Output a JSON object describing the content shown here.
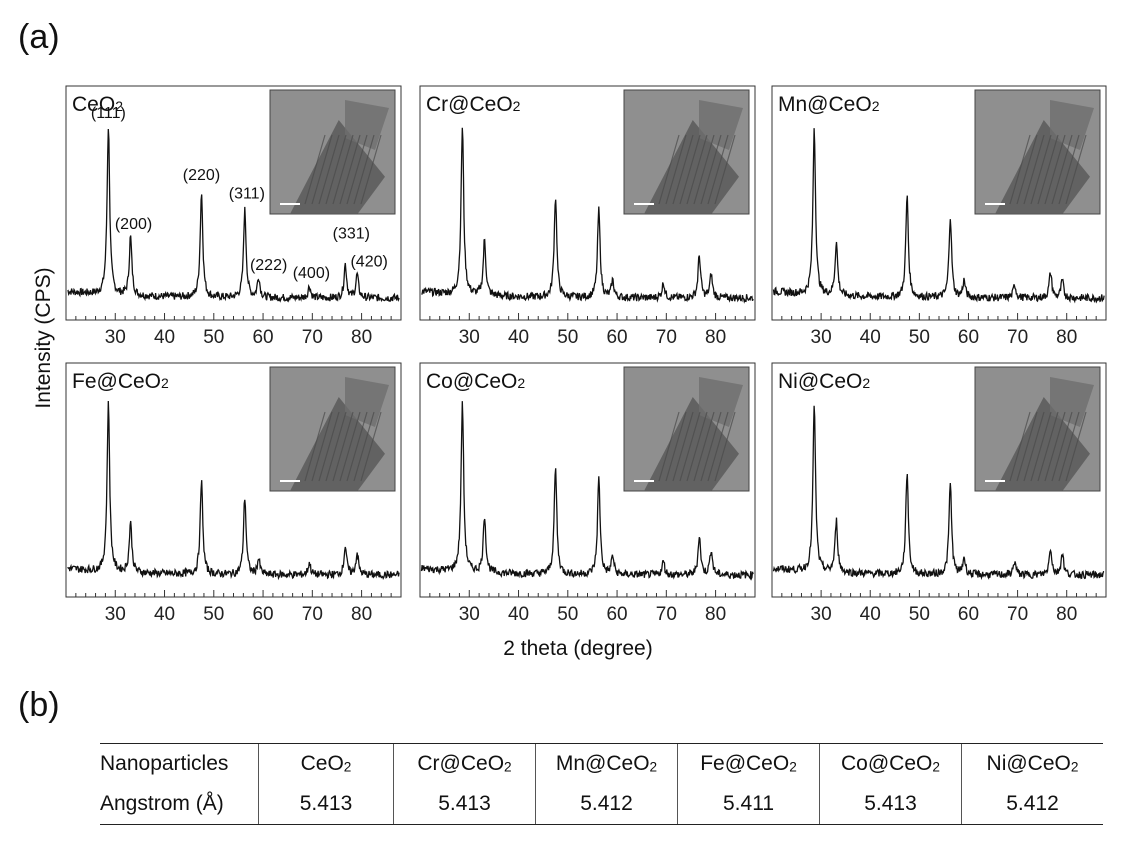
{
  "labels": {
    "a": "(a)",
    "b": "(b)"
  },
  "chart_data": {
    "type": "line",
    "xlabel": "2 theta (degree)",
    "ylabel": "Intensity (CPS)",
    "xlim": [
      20,
      88
    ],
    "x_ticks": [
      30,
      40,
      50,
      60,
      70,
      80
    ],
    "panels": [
      {
        "name": "CeO2",
        "display": [
          "Ce",
          "O",
          "2"
        ],
        "peaks": [
          [
            28.6,
            1.0
          ],
          [
            33.1,
            0.35
          ],
          [
            47.5,
            0.62
          ],
          [
            56.3,
            0.52
          ],
          [
            59.1,
            0.12
          ],
          [
            69.4,
            0.07
          ],
          [
            76.7,
            0.2
          ],
          [
            79.1,
            0.14
          ]
        ],
        "peak_labels": [
          "(111)",
          "(200)",
          "(220)",
          "(311)",
          "(222)",
          "(400)",
          "(331)",
          "(420)"
        ],
        "inset": "TEM image, scale bar"
      },
      {
        "name": "Cr@CeO2",
        "display": [
          "Cr@Ce",
          "O",
          "2"
        ],
        "peaks": [
          [
            28.6,
            1.0
          ],
          [
            33.1,
            0.33
          ],
          [
            47.5,
            0.6
          ],
          [
            56.3,
            0.52
          ],
          [
            59.1,
            0.1
          ],
          [
            69.4,
            0.09
          ],
          [
            76.7,
            0.25
          ],
          [
            79.1,
            0.14
          ]
        ],
        "inset": "TEM image, scale bar"
      },
      {
        "name": "Mn@CeO2",
        "display": [
          "Mn@Ce",
          "O",
          "2"
        ],
        "peaks": [
          [
            28.6,
            1.0
          ],
          [
            33.1,
            0.32
          ],
          [
            47.5,
            0.6
          ],
          [
            56.3,
            0.48
          ],
          [
            59.1,
            0.1
          ],
          [
            69.4,
            0.08
          ],
          [
            76.7,
            0.15
          ],
          [
            79.1,
            0.1
          ]
        ],
        "inset": "TEM image, scale bar"
      },
      {
        "name": "Fe@CeO2",
        "display": [
          "Fe@Ce",
          "O",
          "2"
        ],
        "peaks": [
          [
            28.6,
            1.0
          ],
          [
            33.1,
            0.3
          ],
          [
            47.5,
            0.55
          ],
          [
            56.3,
            0.46
          ],
          [
            59.1,
            0.09
          ],
          [
            69.4,
            0.07
          ],
          [
            76.7,
            0.17
          ],
          [
            79.1,
            0.13
          ]
        ],
        "inset": "TEM image, scale bar"
      },
      {
        "name": "Co@CeO2",
        "display": [
          "Co@Ce",
          "O",
          "2"
        ],
        "peaks": [
          [
            28.6,
            1.0
          ],
          [
            33.1,
            0.34
          ],
          [
            47.5,
            0.63
          ],
          [
            56.3,
            0.57
          ],
          [
            59.1,
            0.11
          ],
          [
            69.4,
            0.08
          ],
          [
            76.7,
            0.23
          ],
          [
            79.1,
            0.15
          ]
        ],
        "inset": "TEM image, scale bar"
      },
      {
        "name": "Ni@CeO2",
        "display": [
          "Ni@Ce",
          "O",
          "2"
        ],
        "peaks": [
          [
            28.6,
            1.0
          ],
          [
            33.1,
            0.31
          ],
          [
            47.5,
            0.61
          ],
          [
            56.3,
            0.54
          ],
          [
            59.1,
            0.1
          ],
          [
            69.4,
            0.08
          ],
          [
            76.7,
            0.16
          ],
          [
            79.1,
            0.13
          ]
        ],
        "inset": "TEM image, scale bar"
      }
    ],
    "grid": false,
    "legend": "none"
  },
  "table": {
    "rows": [
      [
        [
          "Nanoparticles"
        ],
        [
          "Ce",
          "O",
          "2"
        ],
        [
          "Cr@Ce",
          "O",
          "2"
        ],
        [
          "Mn@Ce",
          "O",
          "2"
        ],
        [
          "Fe@Ce",
          "O",
          "2"
        ],
        [
          "Co@Ce",
          "O",
          "2"
        ],
        [
          "Ni@Ce",
          "O",
          "2"
        ]
      ],
      [
        [
          "Angstrom (Å)"
        ],
        [
          "5.413"
        ],
        [
          "5.413"
        ],
        [
          "5.412"
        ],
        [
          "5.411"
        ],
        [
          "5.413"
        ],
        [
          "5.412"
        ]
      ]
    ]
  }
}
